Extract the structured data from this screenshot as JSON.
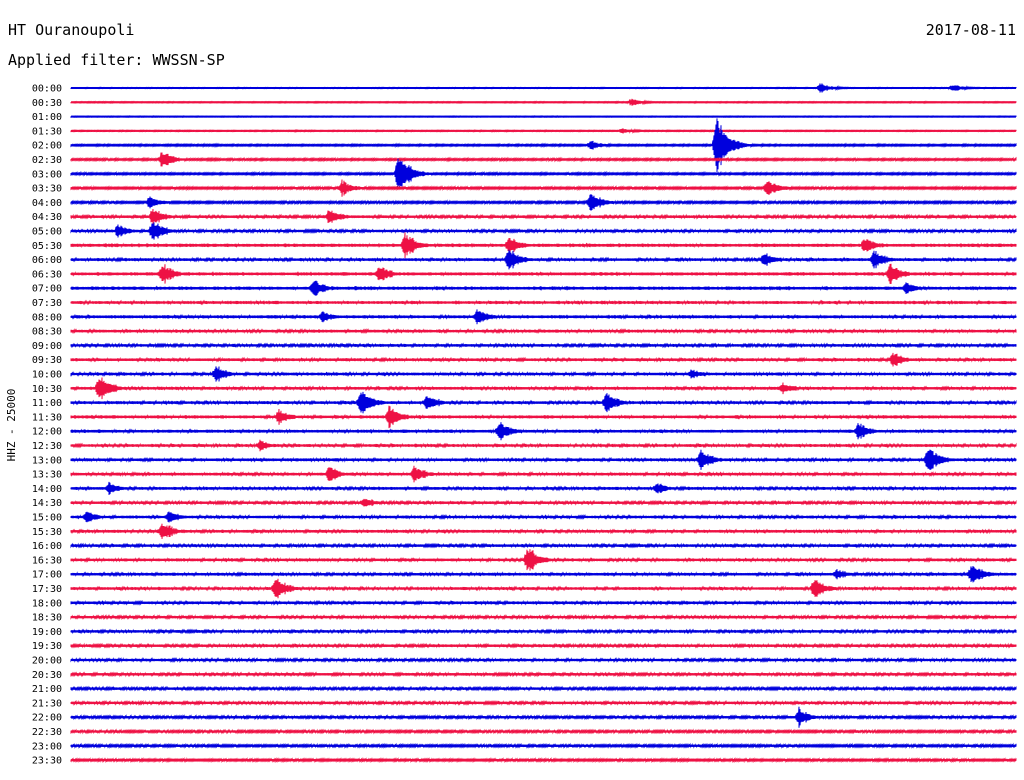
{
  "header": {
    "station": "HT Ouranoupoli",
    "date": "2017-08-11",
    "filter": "Applied filter: WWSSN-SP"
  },
  "chart_data": {
    "type": "line",
    "ylabel": "HHZ - 25000",
    "trace_colors": [
      "#0000dd",
      "#ee1144"
    ],
    "categories": [
      "00:00",
      "00:30",
      "01:00",
      "01:30",
      "02:00",
      "02:30",
      "03:00",
      "03:30",
      "04:00",
      "04:30",
      "05:00",
      "05:30",
      "06:00",
      "06:30",
      "07:00",
      "07:30",
      "08:00",
      "08:30",
      "09:00",
      "09:30",
      "10:00",
      "10:30",
      "11:00",
      "11:30",
      "12:00",
      "12:30",
      "13:00",
      "13:30",
      "14:00",
      "14:30",
      "15:00",
      "15:30",
      "16:00",
      "16:30",
      "17:00",
      "17:30",
      "18:00",
      "18:30",
      "19:00",
      "19:30",
      "20:00",
      "20:30",
      "21:00",
      "21:30",
      "22:00",
      "22:30",
      "23:00",
      "23:30"
    ],
    "noise_level": [
      0.4,
      0.5,
      0.4,
      0.5,
      0.8,
      0.9,
      0.9,
      1.0,
      1.0,
      1.3,
      1.3,
      1.6,
      1.4,
      1.6,
      1.6,
      1.5,
      1.5,
      1.4,
      1.3,
      1.4,
      1.4,
      1.4,
      1.4,
      1.5,
      1.5,
      1.4,
      1.4,
      1.4,
      1.4,
      1.3,
      1.4,
      1.4,
      1.3,
      1.4,
      1.4,
      1.4,
      1.4,
      1.3,
      1.3,
      1.3,
      1.3,
      1.3,
      1.2,
      1.3,
      1.2,
      1.1,
      1.1,
      1.0
    ],
    "events": [
      {
        "trace": "00:00",
        "minute": 23.8,
        "amplitude": 5
      },
      {
        "trace": "00:00",
        "minute": 28.0,
        "amplitude": 4
      },
      {
        "trace": "00:30",
        "minute": 17.8,
        "amplitude": 4
      },
      {
        "trace": "01:30",
        "minute": 17.5,
        "amplitude": 3
      },
      {
        "trace": "02:00",
        "minute": 20.5,
        "amplitude": 30
      },
      {
        "trace": "02:00",
        "minute": 16.5,
        "amplitude": 5
      },
      {
        "trace": "02:30",
        "minute": 2.9,
        "amplitude": 9
      },
      {
        "trace": "03:00",
        "minute": 10.4,
        "amplitude": 22
      },
      {
        "trace": "03:30",
        "minute": 22.1,
        "amplitude": 9
      },
      {
        "trace": "03:30",
        "minute": 8.6,
        "amplitude": 8
      },
      {
        "trace": "04:00",
        "minute": 16.5,
        "amplitude": 11
      },
      {
        "trace": "04:00",
        "minute": 2.5,
        "amplitude": 7
      },
      {
        "trace": "04:30",
        "minute": 8.2,
        "amplitude": 9
      },
      {
        "trace": "04:30",
        "minute": 2.6,
        "amplitude": 9
      },
      {
        "trace": "05:00",
        "minute": 1.5,
        "amplitude": 7
      },
      {
        "trace": "05:00",
        "minute": 2.6,
        "amplitude": 11
      },
      {
        "trace": "05:30",
        "minute": 10.6,
        "amplitude": 14
      },
      {
        "trace": "05:30",
        "minute": 13.9,
        "amplitude": 10
      },
      {
        "trace": "05:30",
        "minute": 25.2,
        "amplitude": 8
      },
      {
        "trace": "06:00",
        "minute": 13.9,
        "amplitude": 12
      },
      {
        "trace": "06:00",
        "minute": 22.0,
        "amplitude": 8
      },
      {
        "trace": "06:00",
        "minute": 25.5,
        "amplitude": 10
      },
      {
        "trace": "06:30",
        "minute": 2.9,
        "amplitude": 11
      },
      {
        "trace": "06:30",
        "minute": 9.8,
        "amplitude": 9
      },
      {
        "trace": "06:30",
        "minute": 26.0,
        "amplitude": 11
      },
      {
        "trace": "07:00",
        "minute": 7.7,
        "amplitude": 9
      },
      {
        "trace": "07:00",
        "minute": 26.5,
        "amplitude": 7
      },
      {
        "trace": "08:00",
        "minute": 12.9,
        "amplitude": 9
      },
      {
        "trace": "08:00",
        "minute": 8.0,
        "amplitude": 6
      },
      {
        "trace": "09:30",
        "minute": 26.1,
        "amplitude": 8
      },
      {
        "trace": "10:00",
        "minute": 4.6,
        "amplitude": 9
      },
      {
        "trace": "10:00",
        "minute": 19.7,
        "amplitude": 5
      },
      {
        "trace": "10:30",
        "minute": 0.9,
        "amplitude": 15
      },
      {
        "trace": "10:30",
        "minute": 22.6,
        "amplitude": 6
      },
      {
        "trace": "11:00",
        "minute": 9.2,
        "amplitude": 14
      },
      {
        "trace": "11:00",
        "minute": 17.0,
        "amplitude": 11
      },
      {
        "trace": "11:00",
        "minute": 11.3,
        "amplitude": 9
      },
      {
        "trace": "11:30",
        "minute": 10.1,
        "amplitude": 12
      },
      {
        "trace": "11:30",
        "minute": 6.6,
        "amplitude": 8
      },
      {
        "trace": "12:00",
        "minute": 13.6,
        "amplitude": 11
      },
      {
        "trace": "12:00",
        "minute": 25.0,
        "amplitude": 9
      },
      {
        "trace": "12:30",
        "minute": 6.0,
        "amplitude": 6
      },
      {
        "trace": "13:00",
        "minute": 20.0,
        "amplitude": 11
      },
      {
        "trace": "13:00",
        "minute": 27.2,
        "amplitude": 14
      },
      {
        "trace": "13:30",
        "minute": 8.2,
        "amplitude": 8
      },
      {
        "trace": "13:30",
        "minute": 10.9,
        "amplitude": 9
      },
      {
        "trace": "14:00",
        "minute": 1.2,
        "amplitude": 7
      },
      {
        "trace": "14:00",
        "minute": 18.6,
        "amplitude": 6
      },
      {
        "trace": "14:30",
        "minute": 9.3,
        "amplitude": 6
      },
      {
        "trace": "15:00",
        "minute": 0.5,
        "amplitude": 7
      },
      {
        "trace": "15:00",
        "minute": 3.1,
        "amplitude": 7
      },
      {
        "trace": "15:30",
        "minute": 2.9,
        "amplitude": 10
      },
      {
        "trace": "16:30",
        "minute": 14.5,
        "amplitude": 14
      },
      {
        "trace": "17:00",
        "minute": 28.6,
        "amplitude": 11
      },
      {
        "trace": "17:00",
        "minute": 24.3,
        "amplitude": 6
      },
      {
        "trace": "17:30",
        "minute": 6.5,
        "amplitude": 12
      },
      {
        "trace": "17:30",
        "minute": 23.6,
        "amplitude": 11
      },
      {
        "trace": "22:00",
        "minute": 23.1,
        "amplitude": 9
      }
    ]
  }
}
